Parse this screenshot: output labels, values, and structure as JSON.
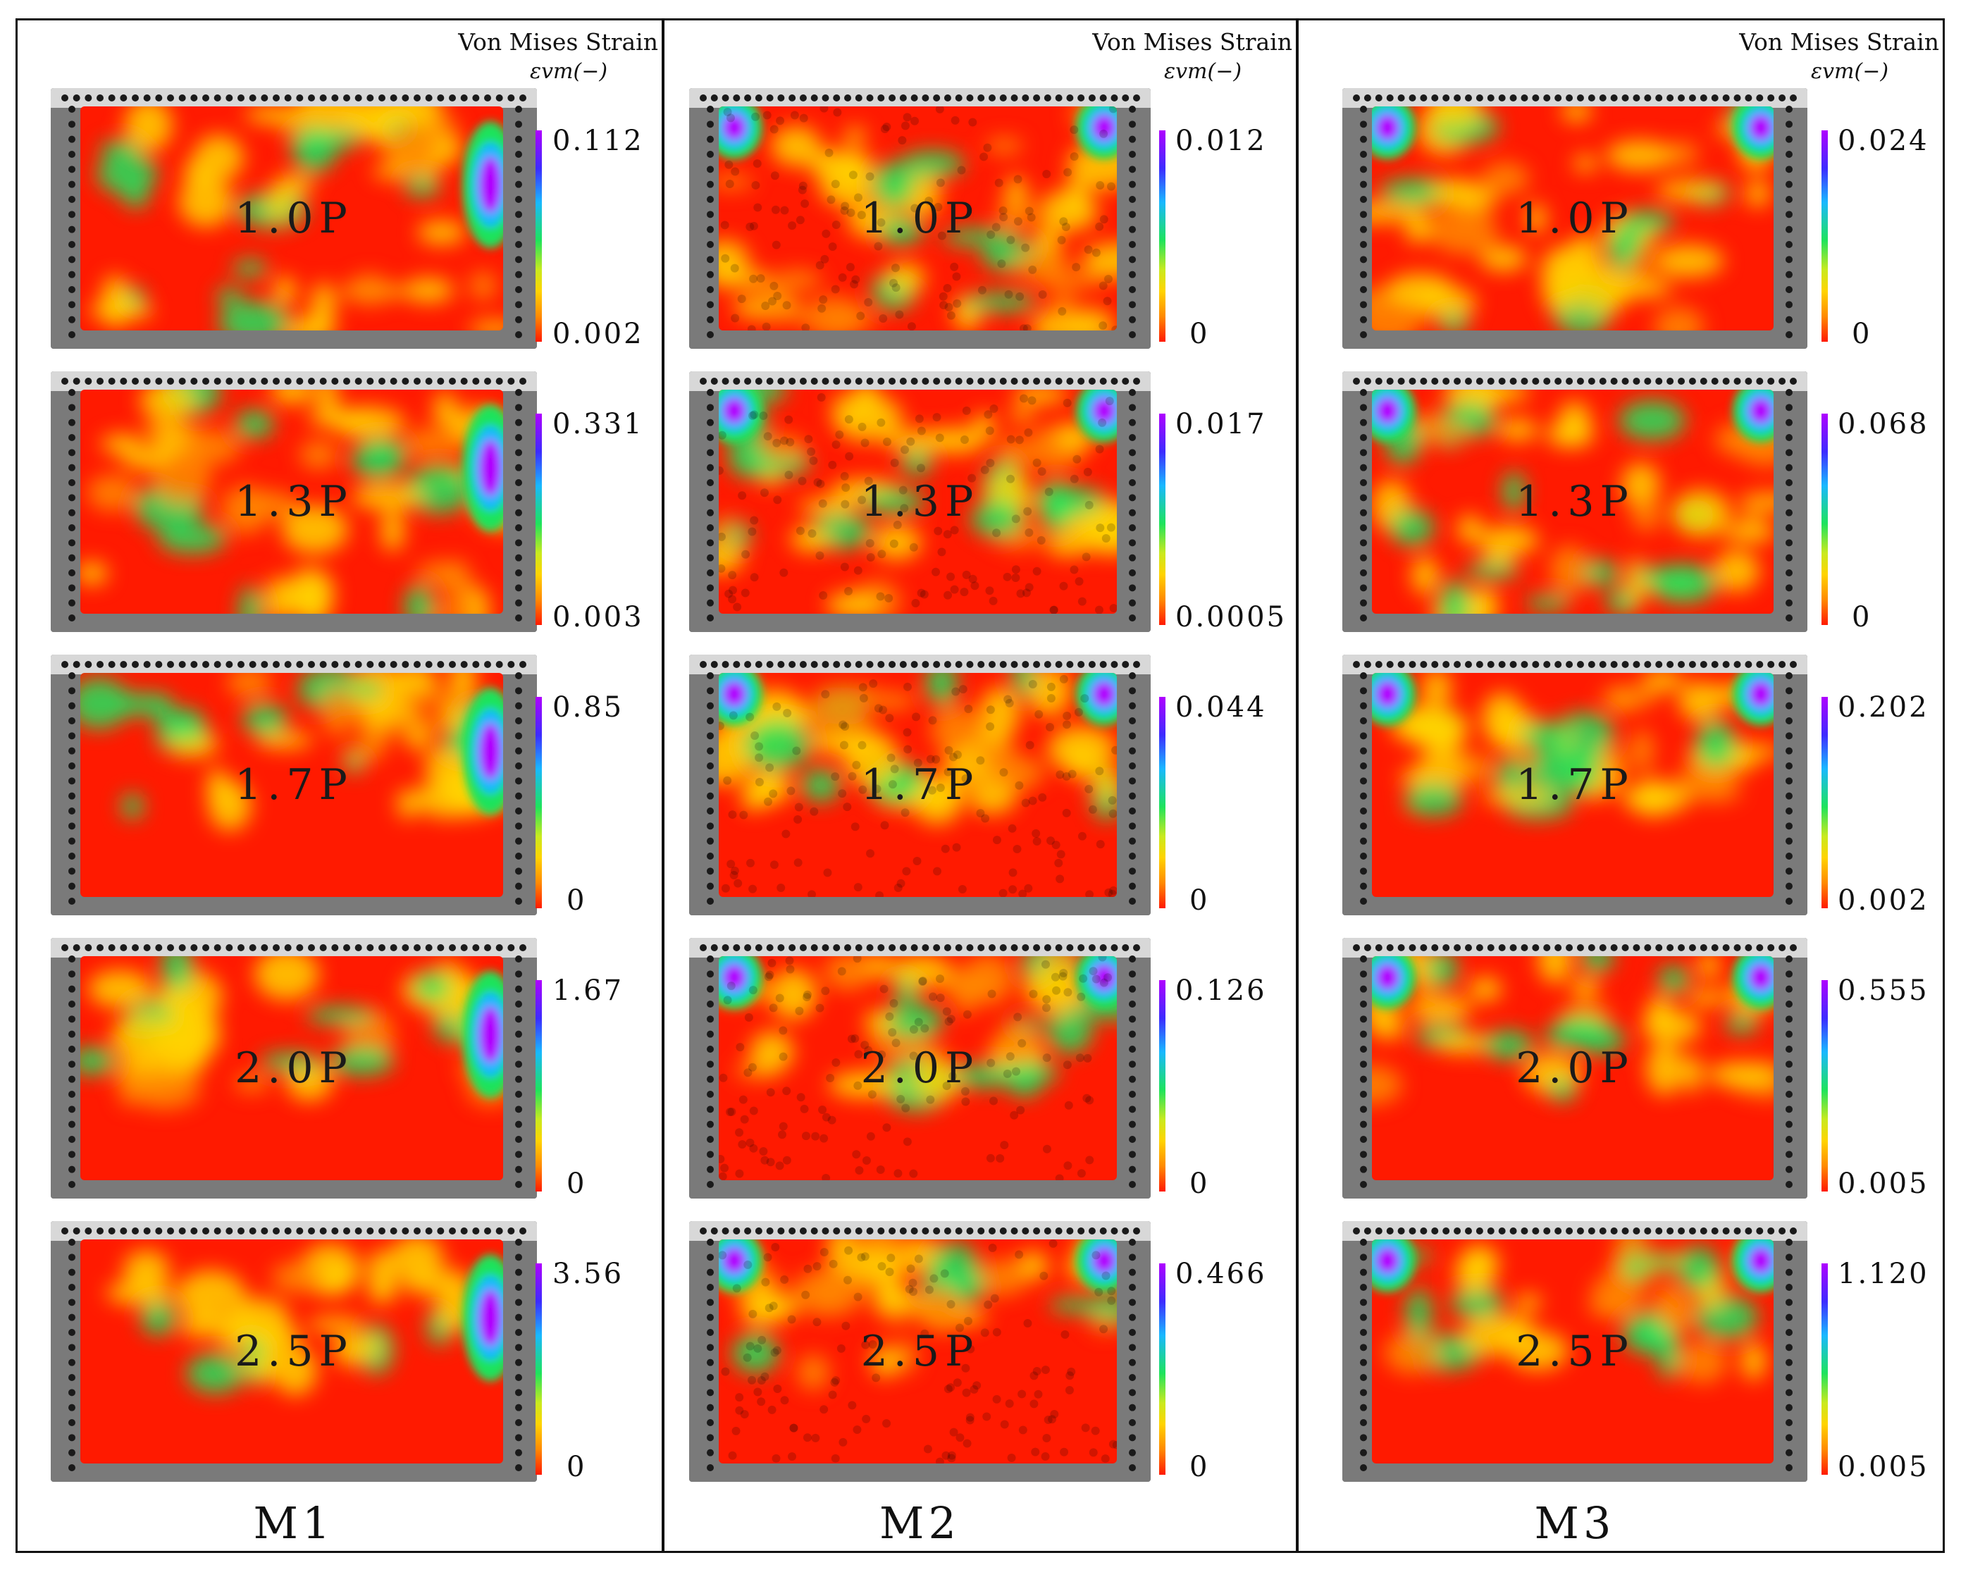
{
  "colorbar_title": "Von Mises Strain",
  "colorbar_symbol": "εvm(−)",
  "colors": {
    "low": "#ff1a00",
    "mid_low": "#ffd400",
    "mid": "#1ee35c",
    "mid_high": "#19b8ff",
    "high": "#b000ff",
    "specimen_frame": "#7a7a7a"
  },
  "models": [
    {
      "name": "M1",
      "maps": [
        {
          "load": "1.0P",
          "max": "0.112",
          "min": "0.002"
        },
        {
          "load": "1.3P",
          "max": "0.331",
          "min": "0.003"
        },
        {
          "load": "1.7P",
          "max": "0.85",
          "min": "0"
        },
        {
          "load": "2.0P",
          "max": "1.67",
          "min": "0"
        },
        {
          "load": "2.5P",
          "max": "3.56",
          "min": "0"
        }
      ]
    },
    {
      "name": "M2",
      "maps": [
        {
          "load": "1.0P",
          "max": "0.012",
          "min": "0"
        },
        {
          "load": "1.3P",
          "max": "0.017",
          "min": "0.0005"
        },
        {
          "load": "1.7P",
          "max": "0.044",
          "min": "0"
        },
        {
          "load": "2.0P",
          "max": "0.126",
          "min": "0"
        },
        {
          "load": "2.5P",
          "max": "0.466",
          "min": "0"
        }
      ]
    },
    {
      "name": "M3",
      "maps": [
        {
          "load": "1.0P",
          "max": "0.024",
          "min": "0"
        },
        {
          "load": "1.3P",
          "max": "0.068",
          "min": "0"
        },
        {
          "load": "1.7P",
          "max": "0.202",
          "min": "0.002"
        },
        {
          "load": "2.0P",
          "max": "0.555",
          "min": "0.005"
        },
        {
          "load": "2.5P",
          "max": "1.120",
          "min": "0.005"
        }
      ]
    }
  ]
}
